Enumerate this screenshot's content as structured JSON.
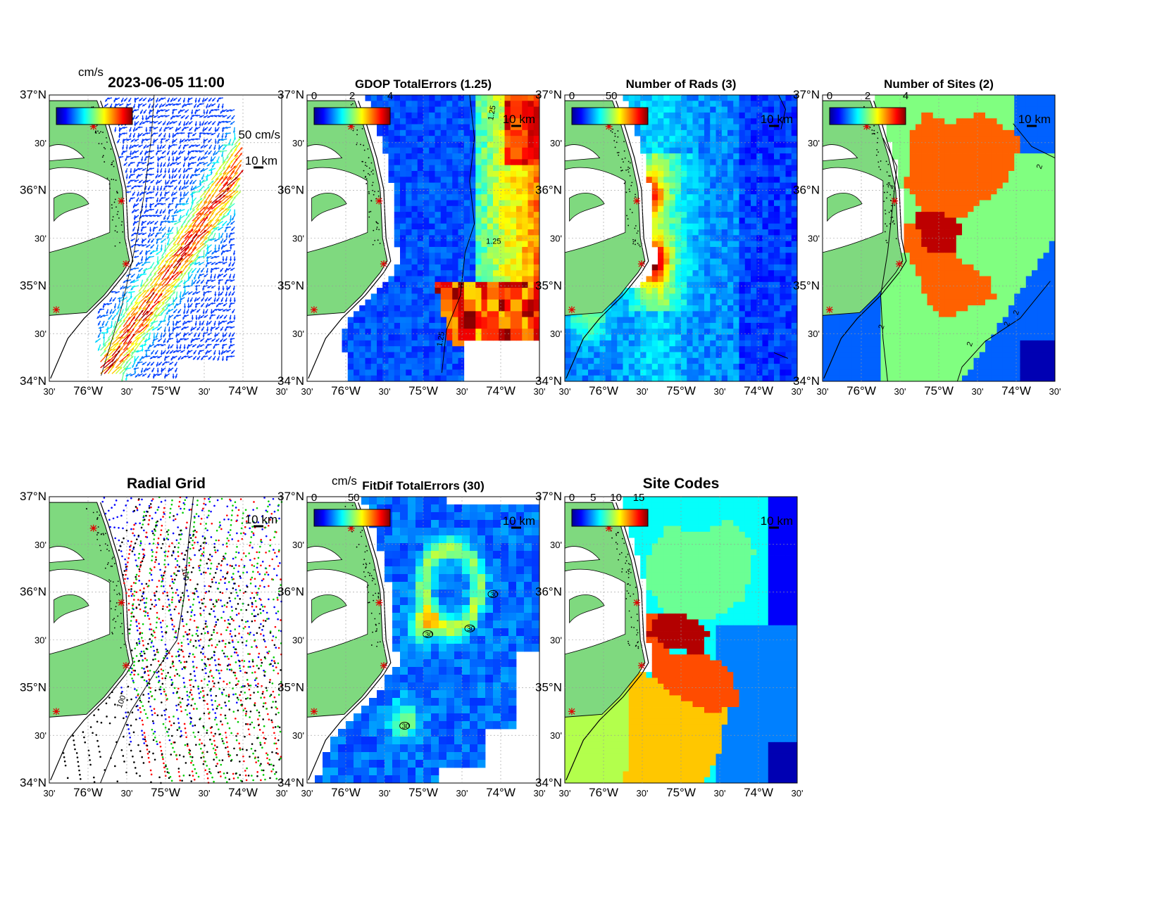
{
  "figure": {
    "panel_titles": [
      "2023-06-05 11:00",
      "GDOP TotalErrors (1.25)",
      "Number of Rads (3)",
      "Number of Sites (2)",
      "Radial Grid",
      "FitDif TotalErrors (30)",
      "Site Codes"
    ],
    "lat_labels": [
      "37°N",
      "30'",
      "36°N",
      "30'",
      "35°N",
      "30'",
      "34°N"
    ],
    "lon_labels": [
      "30'",
      "76°W",
      "30'",
      "75°W",
      "30'",
      "74°W",
      "30'"
    ],
    "scale_label": "10 km",
    "arrow_scale_label": "50 cm/s",
    "units_label": "cm/s",
    "colorbar_ticks": {
      "p1": [],
      "p2": [
        "0",
        "2",
        "4"
      ],
      "p3": [
        "0",
        "50"
      ],
      "p4": [
        "0",
        "2",
        "4"
      ],
      "p5": [],
      "p6": [
        "0",
        "50"
      ],
      "p7": [
        "0",
        "5",
        "10",
        "15"
      ]
    },
    "contour_labels": {
      "p2": [
        "1.25",
        "1.25",
        "1.25"
      ],
      "p4": [
        "2",
        "2",
        "2",
        "2",
        "2",
        "2"
      ],
      "p5": [
        "100",
        "100"
      ],
      "p6": [
        "30",
        "30",
        "30",
        "30"
      ]
    },
    "colors": {
      "land": "#7fd97f",
      "coast": "#000000",
      "site_marker": "#e00000",
      "radial_site_colors": [
        "#0000ff",
        "#ff0000",
        "#00cc00",
        "#000000"
      ],
      "colormap": "jet"
    }
  },
  "chart_data": [
    {
      "type": "map",
      "title": "2023-06-05 11:00",
      "units": "cm/s",
      "xlim": [
        -76.5,
        -73.5
      ],
      "ylim": [
        34,
        37
      ]
    },
    {
      "type": "heatmap",
      "title": "GDOP TotalErrors (1.25)",
      "clim": [
        0,
        4
      ],
      "xlim": [
        -76.5,
        -73.5
      ],
      "ylim": [
        34,
        37
      ]
    },
    {
      "type": "heatmap",
      "title": "Number of Rads (3)",
      "clim": [
        0,
        60
      ],
      "xlim": [
        -76.5,
        -73.5
      ],
      "ylim": [
        34,
        37
      ]
    },
    {
      "type": "heatmap",
      "title": "Number of Sites (2)",
      "clim": [
        0,
        4
      ],
      "xlim": [
        -76.5,
        -73.5
      ],
      "ylim": [
        34,
        37
      ]
    },
    {
      "type": "scatter",
      "title": "Radial Grid",
      "xlim": [
        -76.5,
        -73.5
      ],
      "ylim": [
        34,
        37
      ]
    },
    {
      "type": "heatmap",
      "title": "FitDif TotalErrors (30)",
      "units": "cm/s",
      "clim": [
        0,
        60
      ],
      "xlim": [
        -76.5,
        -73.5
      ],
      "ylim": [
        34,
        37
      ]
    },
    {
      "type": "heatmap",
      "title": "Site Codes",
      "clim": [
        0,
        18
      ],
      "xlim": [
        -76.5,
        -73.5
      ],
      "ylim": [
        34,
        37
      ]
    }
  ]
}
